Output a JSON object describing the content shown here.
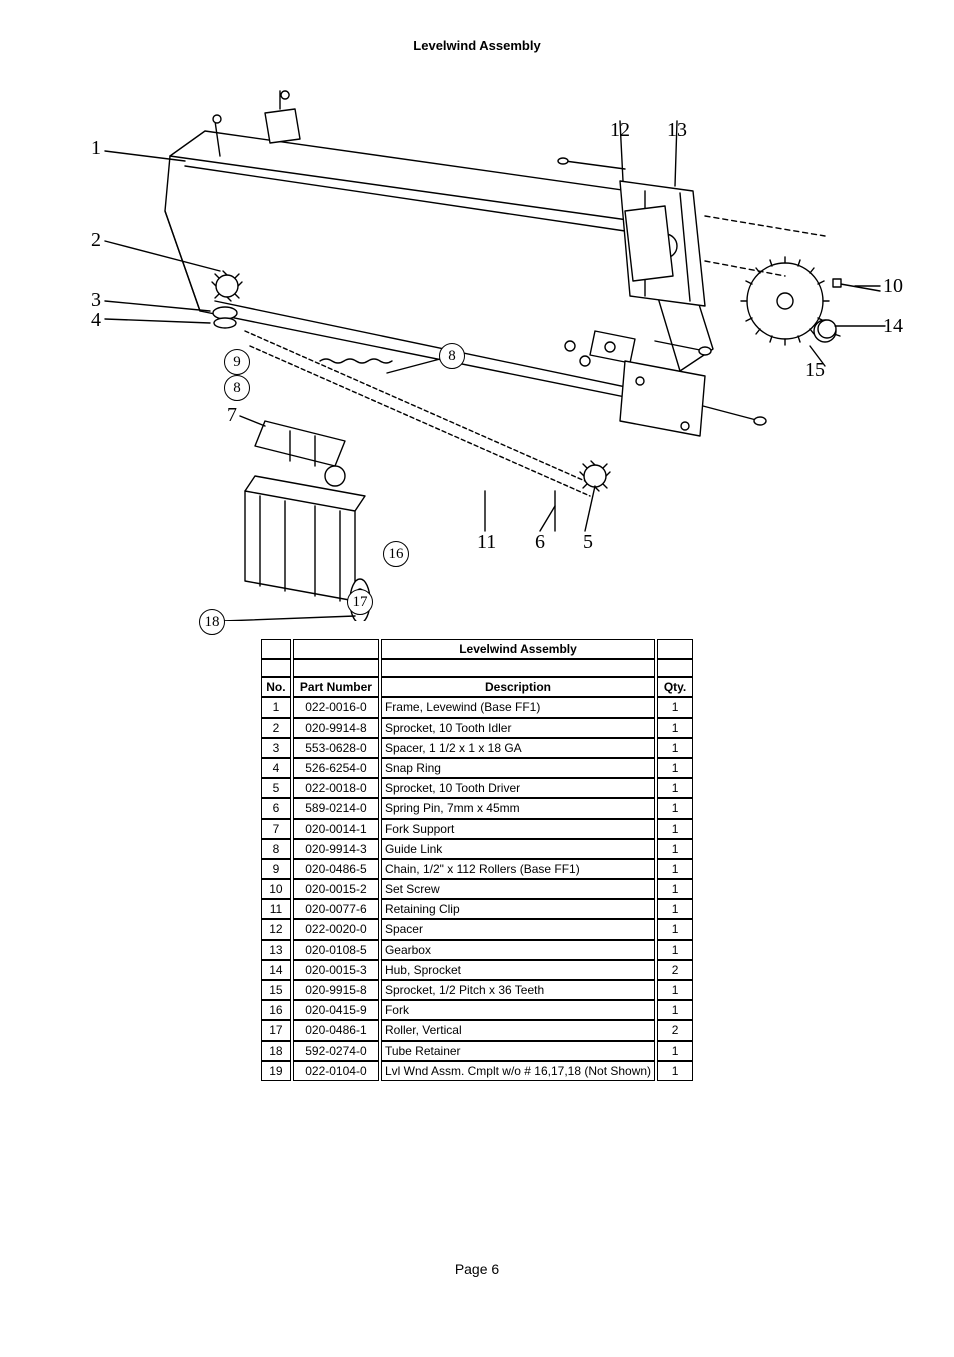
{
  "title": "Levelwind Assembly",
  "table_title": "Levelwind Assembly",
  "page_label": "Page 6",
  "columns": {
    "no": "No.",
    "pn": "Part Number",
    "desc": "Description",
    "qty": "Qty."
  },
  "rows": [
    {
      "no": "1",
      "pn": "022-0016-0",
      "desc": "Frame, Levewind (Base FF1)",
      "qty": "1"
    },
    {
      "no": "2",
      "pn": "020-9914-8",
      "desc": "Sprocket, 10 Tooth Idler",
      "qty": "1"
    },
    {
      "no": "3",
      "pn": "553-0628-0",
      "desc": "Spacer, 1 1/2 x 1 x 18 GA",
      "qty": "1"
    },
    {
      "no": "4",
      "pn": "526-6254-0",
      "desc": "Snap Ring",
      "qty": "1"
    },
    {
      "no": "5",
      "pn": "022-0018-0",
      "desc": "Sprocket, 10 Tooth Driver",
      "qty": "1"
    },
    {
      "no": "6",
      "pn": "589-0214-0",
      "desc": "Spring Pin, 7mm x 45mm",
      "qty": "1"
    },
    {
      "no": "7",
      "pn": "020-0014-1",
      "desc": "Fork Support",
      "qty": "1"
    },
    {
      "no": "8",
      "pn": "020-9914-3",
      "desc": "Guide Link",
      "qty": "1"
    },
    {
      "no": "9",
      "pn": "020-0486-5",
      "desc": "Chain, 1/2\" x 112 Rollers (Base FF1)",
      "qty": "1"
    },
    {
      "no": "10",
      "pn": "020-0015-2",
      "desc": "Set Screw",
      "qty": "1"
    },
    {
      "no": "11",
      "pn": "020-0077-6",
      "desc": "Retaining Clip",
      "qty": "1"
    },
    {
      "no": "12",
      "pn": "022-0020-0",
      "desc": "Spacer",
      "qty": "1"
    },
    {
      "no": "13",
      "pn": "020-0108-5",
      "desc": "Gearbox",
      "qty": "1"
    },
    {
      "no": "14",
      "pn": "020-0015-3",
      "desc": "Hub, Sprocket",
      "qty": "2"
    },
    {
      "no": "15",
      "pn": "020-9915-8",
      "desc": "Sprocket, 1/2 Pitch x 36 Teeth",
      "qty": "1"
    },
    {
      "no": "16",
      "pn": "020-0415-9",
      "desc": "Fork",
      "qty": "1"
    },
    {
      "no": "17",
      "pn": "020-0486-1",
      "desc": "Roller, Vertical",
      "qty": "2"
    },
    {
      "no": "18",
      "pn": "592-0274-0",
      "desc": "Tube Retainer",
      "qty": "1"
    },
    {
      "no": "19",
      "pn": "022-0104-0",
      "desc": "Lvl Wnd Assm. Cmplt w/o # 16,17,18 (Not Shown)",
      "qty": "1"
    }
  ],
  "callouts": {
    "c1": "1",
    "c2": "2",
    "c3": "3",
    "c4": "4",
    "c5": "5",
    "c6": "6",
    "c7": "7",
    "c8": "8",
    "c8b": "8",
    "c9": "9",
    "c10": "10",
    "c11": "11",
    "c12": "12",
    "c13": "13",
    "c14": "14",
    "c15": "15",
    "c16": "16",
    "c17": "17",
    "c18": "18"
  },
  "diagram_style": {
    "stroke": "#000000",
    "stroke_width": 1.4,
    "dash": "6 4",
    "fill": "#ffffff"
  }
}
